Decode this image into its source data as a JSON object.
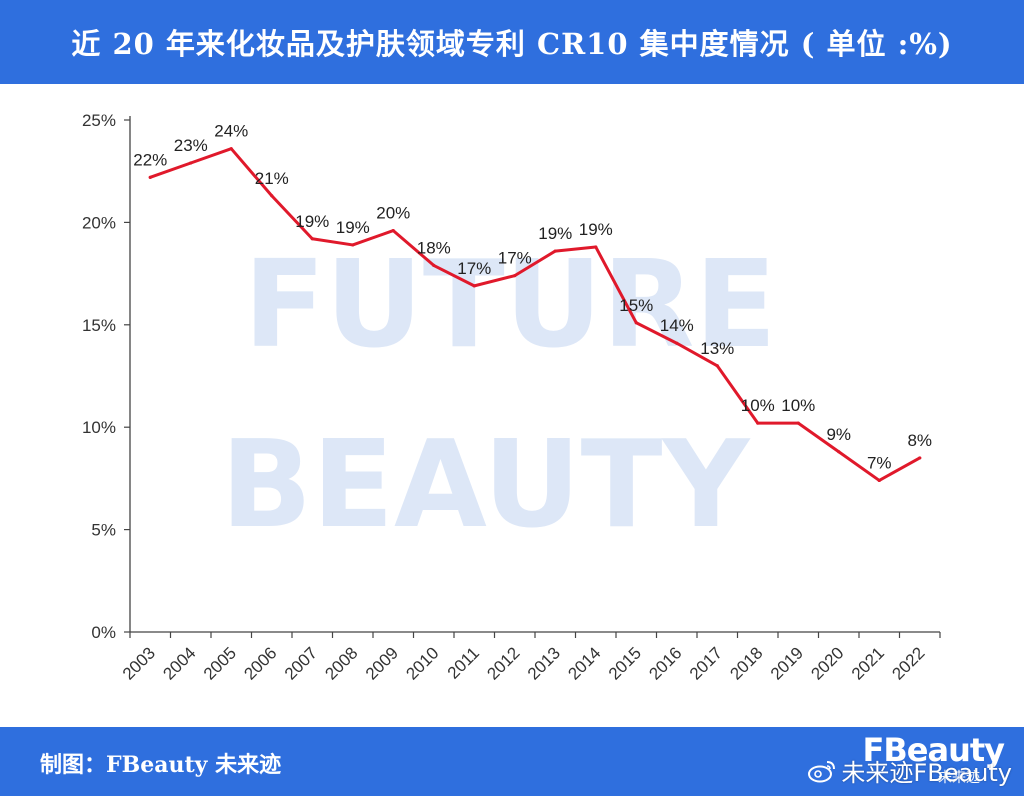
{
  "header": {
    "title": "近 20 年来化妆品及护肤领域专利 CR10 集中度情况 ( 单位 :%)"
  },
  "footer": {
    "source": "制图：FBeauty 未来迹",
    "brand_logo": "FBeauty",
    "brand_logo_sub": "未来迹",
    "weibo_watermark": "未来迹FBeauty"
  },
  "watermark": {
    "line1": "FUTURE",
    "line2": "BEAUTY"
  },
  "colors": {
    "header_bg": "#2f6fde",
    "line": "#e0192b",
    "watermark": "#dde7f7"
  },
  "chart_data": {
    "type": "line",
    "title": "近 20 年来化妆品及护肤领域专利 CR10 集中度情况 ( 单位 :%)",
    "xlabel": "",
    "ylabel": "",
    "x": [
      "2003",
      "2004",
      "2005",
      "2006",
      "2007",
      "2008",
      "2009",
      "2010",
      "2011",
      "2012",
      "2013",
      "2014",
      "2015",
      "2016",
      "2017",
      "2018",
      "2019",
      "2020",
      "2021",
      "2022"
    ],
    "series": [
      {
        "values": [
          22.2,
          22.9,
          23.6,
          21.3,
          19.2,
          18.9,
          19.6,
          17.9,
          16.9,
          17.4,
          18.6,
          18.8,
          15.1,
          14.1,
          13.0,
          10.2,
          10.2,
          8.8,
          7.4,
          8.5
        ],
        "labels": [
          "22%",
          "23%",
          "24%",
          "21%",
          "19%",
          "19%",
          "20%",
          "18%",
          "17%",
          "17%",
          "19%",
          "19%",
          "15%",
          "14%",
          "13%",
          "10%",
          "10%",
          "9%",
          "7%",
          "8%"
        ]
      }
    ],
    "ylim": [
      0,
      25
    ],
    "yticks": [
      0,
      5,
      10,
      15,
      20,
      25
    ],
    "ytick_labels": [
      "0%",
      "5%",
      "10%",
      "15%",
      "20%",
      "25%"
    ],
    "grid": false,
    "legend": "none"
  }
}
